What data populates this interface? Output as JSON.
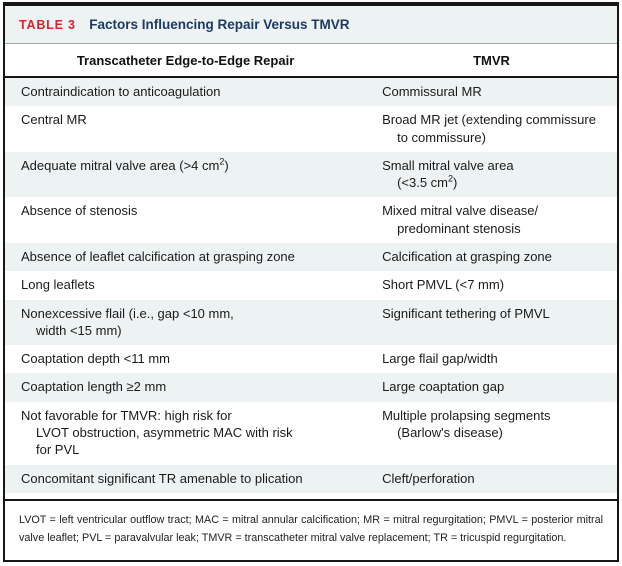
{
  "table": {
    "label": "TABLE 3",
    "title": "Factors Influencing Repair Versus TMVR",
    "columns": [
      "Transcatheter Edge-to-Edge Repair",
      "TMVR"
    ],
    "rows": [
      {
        "repair": [
          "Contraindication to anticoagulation"
        ],
        "tmvr": [
          "Commissural MR"
        ]
      },
      {
        "repair": [
          "Central MR"
        ],
        "tmvr": [
          "Broad MR jet (extending commissure",
          "to commissure)"
        ]
      },
      {
        "repair": [
          "Adequate mitral valve area (>4 cm²)"
        ],
        "tmvr": [
          "Small mitral valve area",
          "(<3.5 cm²)"
        ]
      },
      {
        "repair": [
          "Absence of stenosis"
        ],
        "tmvr": [
          "Mixed mitral valve disease/",
          "predominant stenosis"
        ]
      },
      {
        "repair": [
          "Absence of leaflet calcification at grasping zone"
        ],
        "tmvr": [
          "Calcification at grasping zone"
        ]
      },
      {
        "repair": [
          "Long leaflets"
        ],
        "tmvr": [
          "Short PMVL (<7 mm)"
        ]
      },
      {
        "repair": [
          "Nonexcessive flail (i.e., gap <10 mm,",
          "width <15 mm)"
        ],
        "tmvr": [
          "Significant tethering of PMVL"
        ]
      },
      {
        "repair": [
          "Coaptation depth <11 mm"
        ],
        "tmvr": [
          "Large flail gap/width"
        ]
      },
      {
        "repair": [
          "Coaptation length ≥2 mm"
        ],
        "tmvr": [
          "Large coaptation gap"
        ]
      },
      {
        "repair": [
          "Not favorable for TMVR: high risk for",
          "LVOT obstruction, asymmetric MAC with risk",
          "for PVL"
        ],
        "tmvr": [
          "Multiple prolapsing segments",
          "(Barlow's disease)"
        ]
      },
      {
        "repair": [
          "Concomitant significant TR amenable to plication"
        ],
        "tmvr": [
          "Cleft/perforation"
        ]
      }
    ],
    "footnote": "LVOT = left ventricular outflow tract; MAC = mitral annular calcification; MR = mitral regurgitation; PMVL = posterior mitral valve leaflet; PVL = paravalvular leak; TMVR = transcatheter mitral valve replacement; TR = tricuspid regurgitation.",
    "colors": {
      "label_red": "#da232d",
      "title_navy": "#1c3a63",
      "row_shade": "#edf2f2",
      "border": "#161616"
    }
  }
}
